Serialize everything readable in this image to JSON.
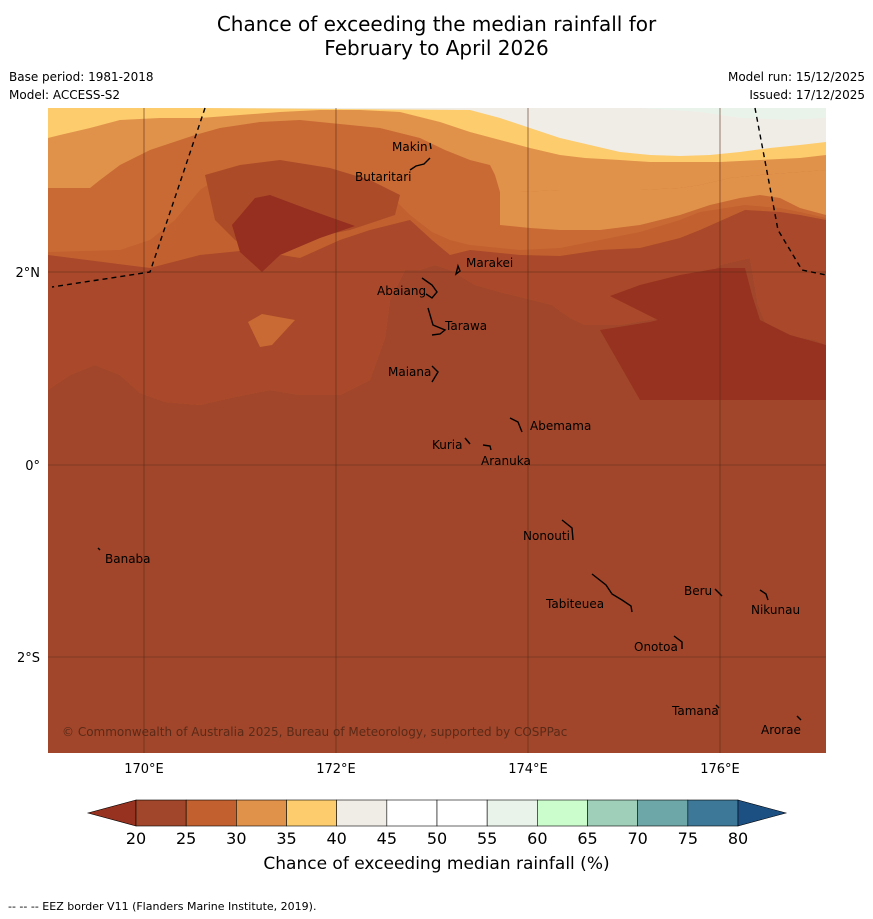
{
  "title": {
    "line1": "Chance of exceeding the median rainfall for",
    "line2": "February to April 2026"
  },
  "meta": {
    "base_period": "Base period: 1981-2018",
    "model": "Model: ACCESS-S2",
    "model_run": "Model run: 15/12/2025",
    "issued": "Issued: 17/12/2025"
  },
  "axes": {
    "lon_labels": [
      "170°E",
      "172°E",
      "174°E",
      "176°E"
    ],
    "lat_labels": [
      "2°N",
      "0°",
      "2°S"
    ]
  },
  "places": [
    "Makin",
    "Butaritari",
    "Marakei",
    "Abaiang",
    "Tarawa",
    "Maiana",
    "Abemama",
    "Kuria",
    "Aranuka",
    "Nonouti",
    "Banaba",
    "Beru",
    "Nikunau",
    "Tabiteuea",
    "Onotoa",
    "Tamana",
    "Arorae"
  ],
  "copyright": "© Commonwealth of Australia 2025, Bureau of Meteorology, supported by COSPPac",
  "colorbar": {
    "ticks": [
      "20",
      "25",
      "30",
      "35",
      "40",
      "45",
      "50",
      "55",
      "60",
      "65",
      "70",
      "75",
      "80"
    ],
    "colors": [
      "#a1462a",
      "#c2602f",
      "#e0924a",
      "#fdcc6c",
      "#f0ece6",
      "#ffffff",
      "#ffffff",
      "#eaf3ea",
      "#cbfccb",
      "#9fcfb8",
      "#6ea7a7",
      "#3e7898"
    ],
    "under_color": "#96321f",
    "over_color": "#1c4f82",
    "label": "Chance of exceeding median rainfall (%)"
  },
  "footer": "-- -- -- EEZ border V11 (Flanders Marine Institute, 2019)."
}
